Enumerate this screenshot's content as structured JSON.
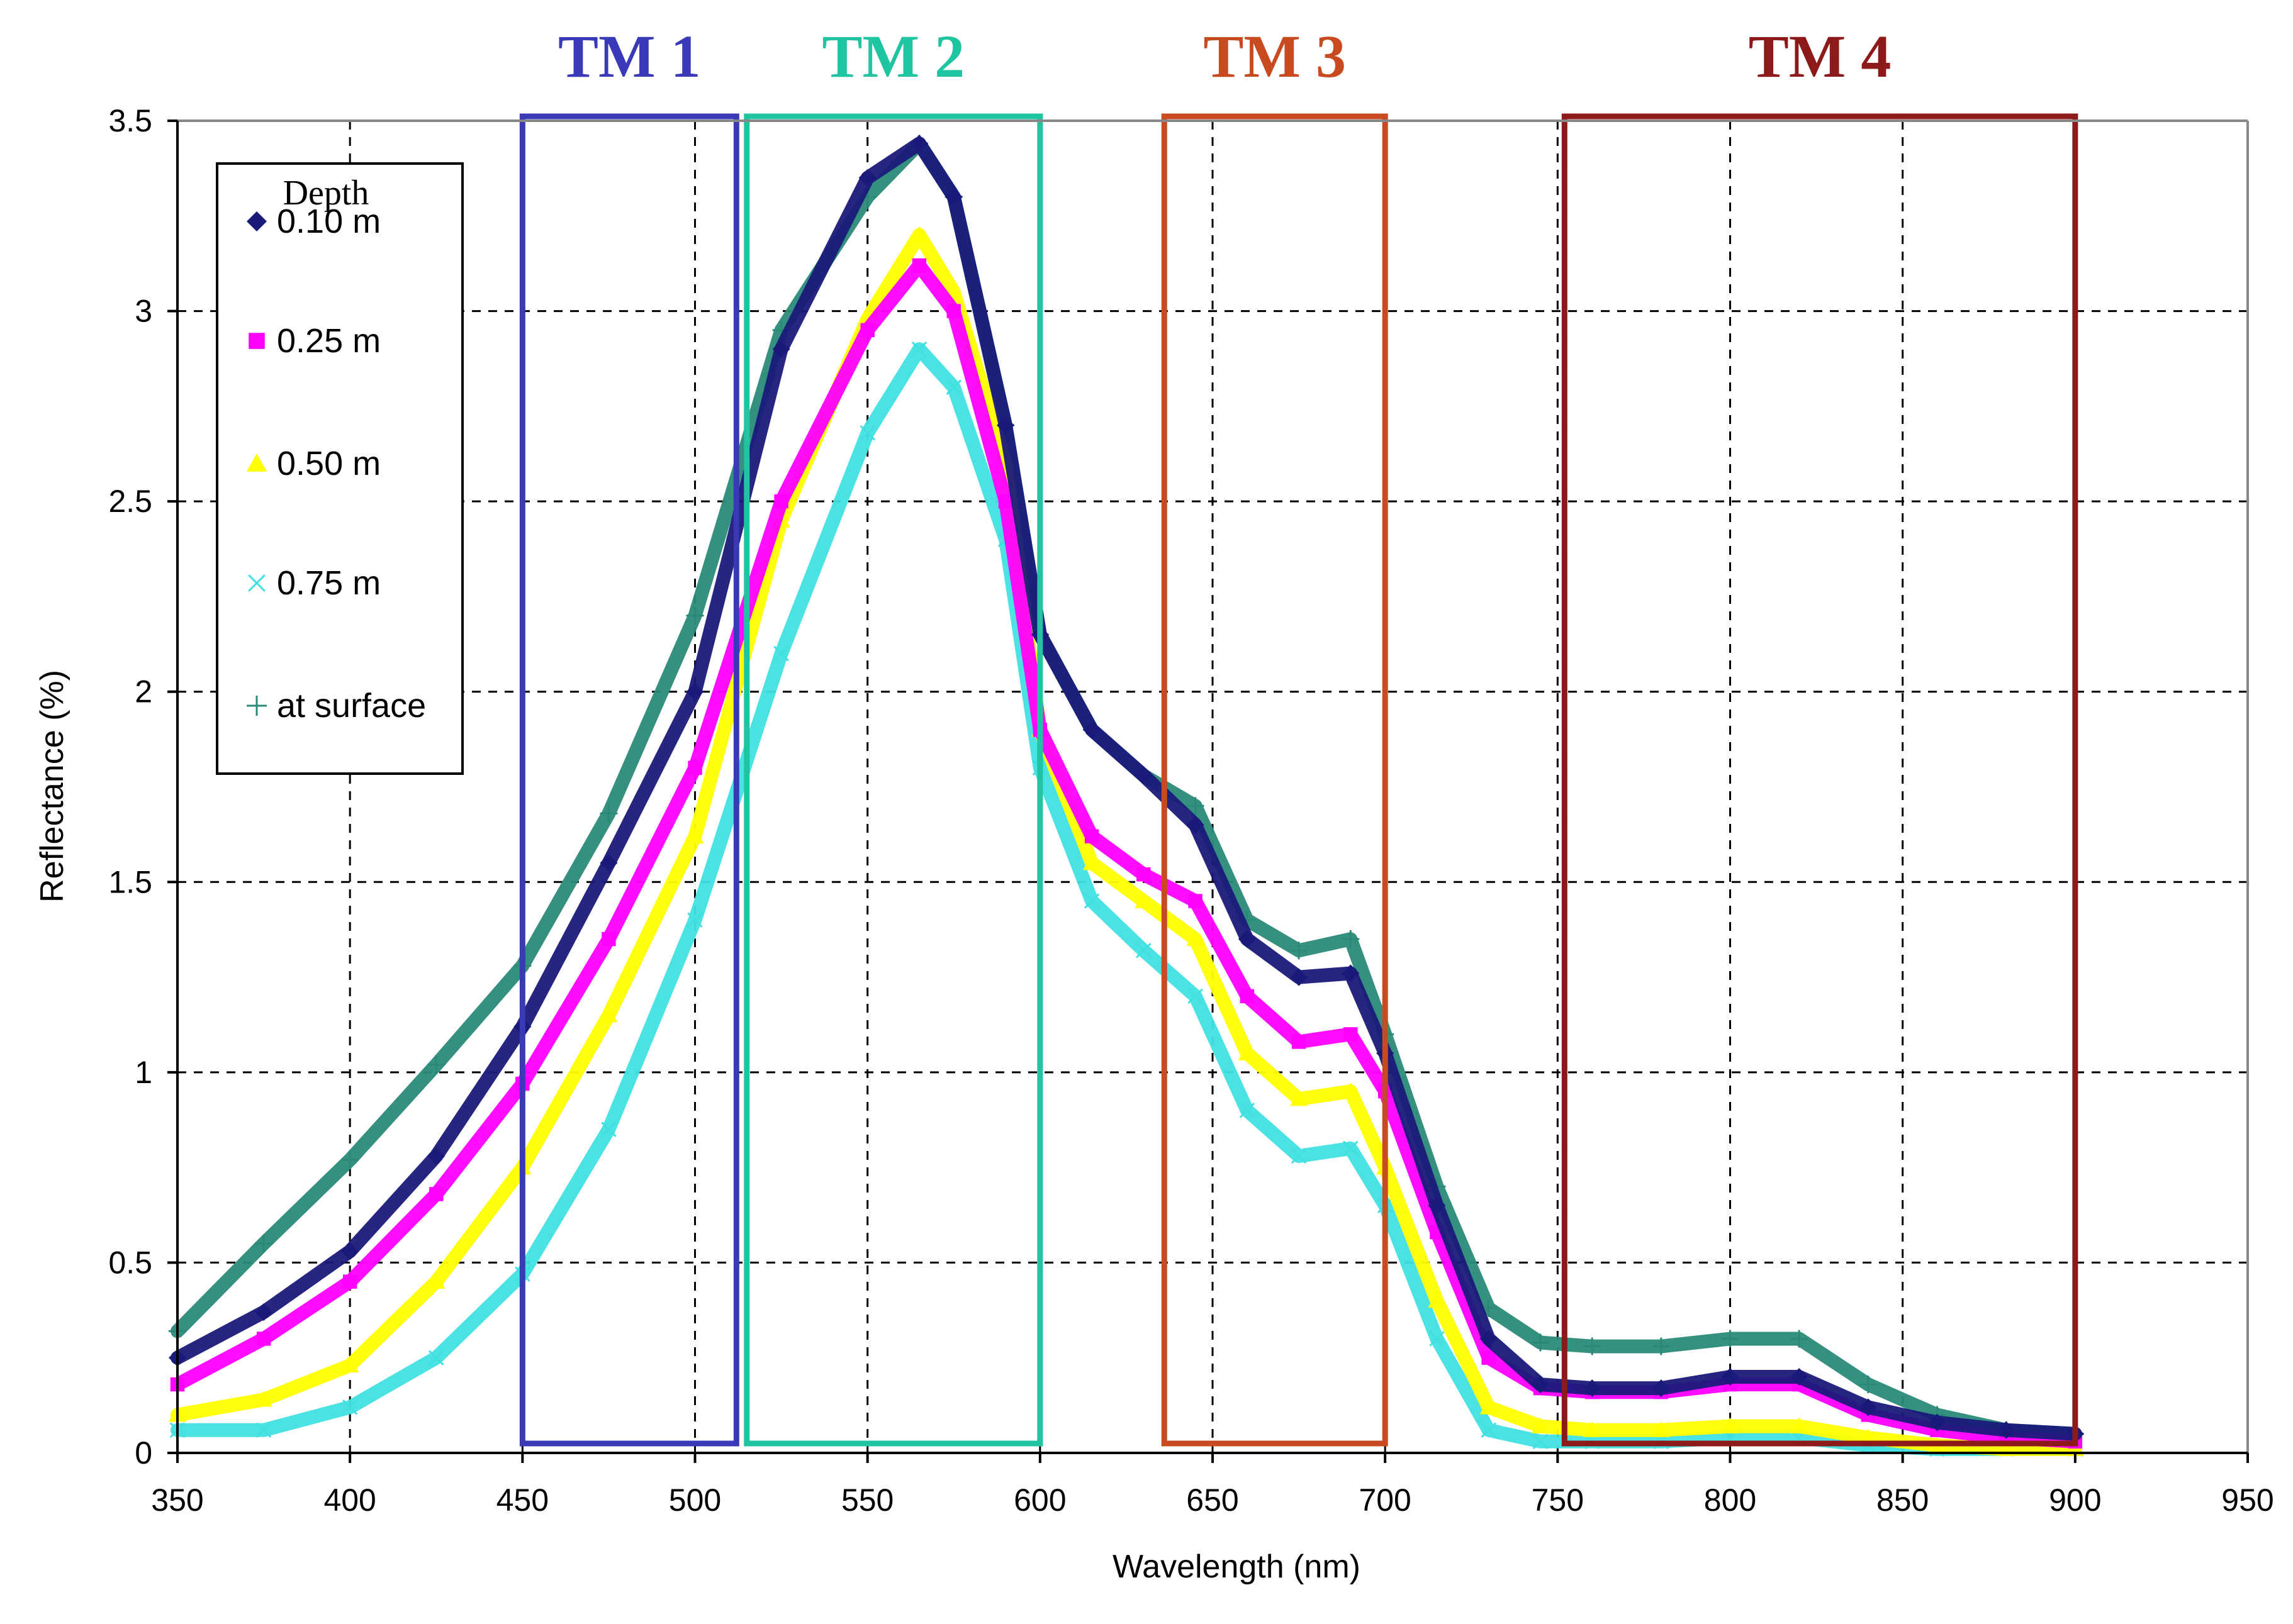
{
  "chart_data": {
    "type": "scatter",
    "xlabel": "Wavelength (nm)",
    "ylabel": "Reflectance (%)",
    "xlim": [
      350,
      950
    ],
    "ylim": [
      0,
      3.5
    ],
    "x_ticks": [
      350,
      400,
      450,
      500,
      550,
      600,
      650,
      700,
      750,
      800,
      850,
      900,
      950
    ],
    "y_ticks": [
      0,
      0.5,
      1,
      1.5,
      2,
      2.5,
      3,
      3.5
    ],
    "x_tick_labels": [
      "350",
      "400",
      "450",
      "500",
      "550",
      "600",
      "650",
      "700",
      "750",
      "800",
      "850",
      "900",
      "950"
    ],
    "y_tick_labels": [
      "0",
      "0.5",
      "1",
      "1.5",
      "2",
      "2.5",
      "3",
      "3.5"
    ],
    "grid": true,
    "legend": {
      "title": "Depth",
      "position": "top-left"
    },
    "bands": [
      {
        "label": "TM  1",
        "x_start": 450,
        "x_end": 512,
        "color": "#3a3ab8"
      },
      {
        "label": "TM  2",
        "x_start": 515,
        "x_end": 600,
        "color": "#1fc4a0"
      },
      {
        "label": "TM  3",
        "x_start": 636,
        "x_end": 700,
        "color": "#c84a20"
      },
      {
        "label": "TM  4",
        "x_start": 752,
        "x_end": 900,
        "color": "#8c1a1a"
      }
    ],
    "series": [
      {
        "name": "0.10 m",
        "marker": "diamond",
        "color": "#1a1a7a",
        "x": [
          350,
          375,
          400,
          425,
          450,
          475,
          500,
          525,
          550,
          565,
          575,
          590,
          600,
          615,
          630,
          645,
          660,
          675,
          690,
          700,
          715,
          730,
          745,
          760,
          780,
          800,
          820,
          840,
          860,
          880,
          900
        ],
        "y": [
          0.25,
          0.37,
          0.53,
          0.78,
          1.12,
          1.55,
          2.0,
          2.9,
          3.35,
          3.44,
          3.3,
          2.7,
          2.15,
          1.9,
          1.78,
          1.65,
          1.35,
          1.25,
          1.26,
          1.05,
          0.65,
          0.3,
          0.18,
          0.17,
          0.17,
          0.2,
          0.2,
          0.12,
          0.08,
          0.06,
          0.05
        ]
      },
      {
        "name": "0.25 m",
        "marker": "square",
        "color": "#ff00ff",
        "x": [
          350,
          375,
          400,
          425,
          450,
          475,
          500,
          525,
          550,
          565,
          575,
          590,
          600,
          615,
          630,
          645,
          660,
          675,
          690,
          700,
          715,
          730,
          745,
          760,
          780,
          800,
          820,
          840,
          860,
          880,
          900
        ],
        "y": [
          0.18,
          0.3,
          0.45,
          0.68,
          0.97,
          1.35,
          1.8,
          2.5,
          2.95,
          3.12,
          3.0,
          2.5,
          1.9,
          1.62,
          1.52,
          1.45,
          1.2,
          1.08,
          1.1,
          0.95,
          0.58,
          0.25,
          0.17,
          0.16,
          0.16,
          0.18,
          0.18,
          0.1,
          0.06,
          0.04,
          0.03
        ]
      },
      {
        "name": "0.50 m",
        "marker": "triangle",
        "color": "#ffff00",
        "x": [
          350,
          375,
          400,
          425,
          450,
          475,
          500,
          525,
          550,
          565,
          575,
          590,
          600,
          615,
          630,
          645,
          660,
          675,
          690,
          700,
          715,
          730,
          745,
          760,
          780,
          800,
          820,
          840,
          860,
          880,
          900
        ],
        "y": [
          0.1,
          0.14,
          0.23,
          0.45,
          0.75,
          1.15,
          1.62,
          2.45,
          2.98,
          3.2,
          3.05,
          2.6,
          1.9,
          1.55,
          1.45,
          1.35,
          1.05,
          0.93,
          0.95,
          0.75,
          0.4,
          0.12,
          0.07,
          0.06,
          0.06,
          0.07,
          0.07,
          0.04,
          0.02,
          0.01,
          0.01
        ]
      },
      {
        "name": "0.75 m",
        "marker": "x",
        "color": "#40e0e0",
        "x": [
          350,
          375,
          400,
          425,
          450,
          475,
          500,
          525,
          550,
          565,
          575,
          590,
          600,
          615,
          630,
          645,
          660,
          675,
          690,
          700,
          715,
          730,
          745,
          760,
          780,
          800,
          820,
          840,
          860,
          880,
          900
        ],
        "y": [
          0.06,
          0.06,
          0.12,
          0.25,
          0.47,
          0.85,
          1.4,
          2.1,
          2.68,
          2.9,
          2.8,
          2.4,
          1.8,
          1.45,
          1.32,
          1.2,
          0.9,
          0.78,
          0.8,
          0.65,
          0.3,
          0.06,
          0.03,
          0.03,
          0.03,
          0.04,
          0.04,
          0.02,
          0.01,
          0.01,
          0.01
        ]
      },
      {
        "name": "at surface",
        "marker": "plus",
        "color": "#2a8a78",
        "x": [
          350,
          375,
          400,
          425,
          450,
          475,
          500,
          525,
          550,
          565,
          575,
          590,
          600,
          615,
          630,
          645,
          660,
          675,
          690,
          700,
          715,
          730,
          745,
          760,
          780,
          800,
          820,
          840,
          860,
          880,
          900
        ],
        "y": [
          0.32,
          0.55,
          0.77,
          1.02,
          1.28,
          1.68,
          2.2,
          2.95,
          3.3,
          3.44,
          3.3,
          2.7,
          2.15,
          1.9,
          1.78,
          1.7,
          1.4,
          1.32,
          1.35,
          1.1,
          0.7,
          0.38,
          0.29,
          0.28,
          0.28,
          0.3,
          0.3,
          0.18,
          0.1,
          0.06,
          0.05
        ]
      }
    ]
  }
}
